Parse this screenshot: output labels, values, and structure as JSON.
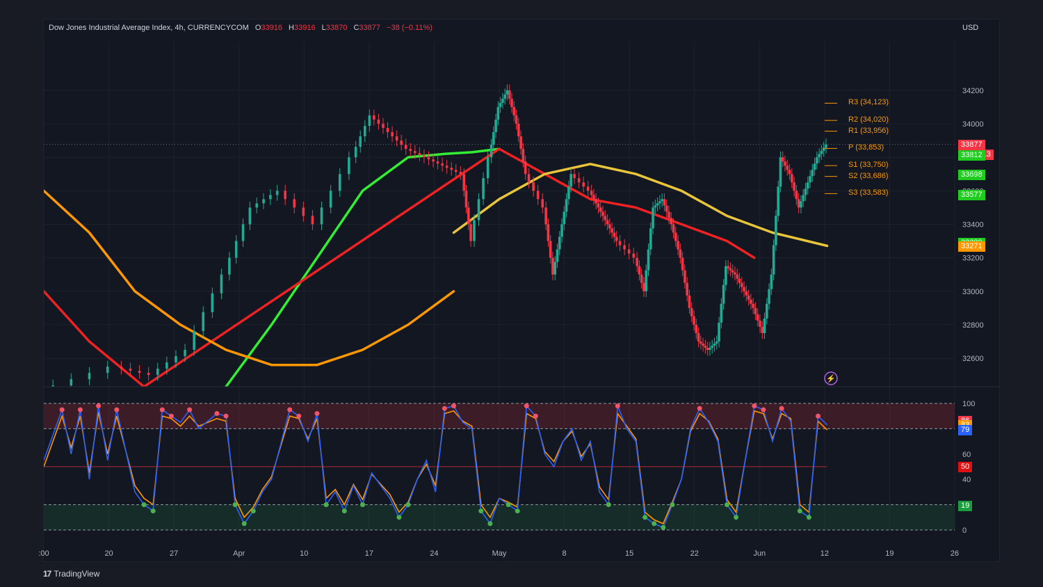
{
  "header": {
    "symbol": "Dow Jones Industrial Average Index, 4h, CURRENCYCOM",
    "o_label": "O",
    "o": "33916",
    "h_label": "H",
    "h": "33916",
    "l_label": "L",
    "l": "33870",
    "c_label": "C",
    "c": "33877",
    "change": "−38 (−0.11%)",
    "currency": "USD"
  },
  "brand": {
    "logo": "17",
    "name": "TradingView"
  },
  "colors": {
    "up": "#22ab94",
    "down": "#f23645",
    "bright_green": "#33ee33",
    "red_ma": "#ee2222",
    "orange": "#ff9800",
    "yellow": "#e8c53a",
    "stoch_k": "#2962ff",
    "stoch_d": "#ff9800"
  },
  "chart_data": {
    "type": "line",
    "title": "Dow Jones Industrial Average Index, 4h, CURRENCYCOM",
    "ylabel": "USD",
    "price_axis": {
      "ticks": [
        "34200",
        "34000",
        "33800",
        "33600",
        "33400",
        "33200",
        "33000",
        "32800",
        "32600"
      ],
      "ylim": [
        32430,
        34490
      ]
    },
    "time_axis": {
      "ticks": [
        ":00",
        "20",
        "27",
        "Apr",
        "10",
        "17",
        "24",
        "May",
        "8",
        "15",
        "22",
        "Jun",
        "12",
        "19",
        "26"
      ]
    },
    "price_path": [
      [
        0,
        32400
      ],
      [
        0.08,
        32550
      ],
      [
        0.12,
        32500
      ],
      [
        0.16,
        32650
      ],
      [
        0.2,
        33100
      ],
      [
        0.23,
        33500
      ],
      [
        0.26,
        33600
      ],
      [
        0.3,
        33400
      ],
      [
        0.34,
        33800
      ],
      [
        0.36,
        34050
      ],
      [
        0.38,
        33950
      ],
      [
        0.4,
        33850
      ],
      [
        0.42,
        33800
      ],
      [
        0.44,
        33750
      ],
      [
        0.46,
        33700
      ],
      [
        0.47,
        33300
      ],
      [
        0.49,
        33800
      ],
      [
        0.5,
        34100
      ],
      [
        0.51,
        34200
      ],
      [
        0.52,
        34000
      ],
      [
        0.53,
        33700
      ],
      [
        0.55,
        33500
      ],
      [
        0.56,
        33100
      ],
      [
        0.57,
        33400
      ],
      [
        0.58,
        33700
      ],
      [
        0.6,
        33600
      ],
      [
        0.61,
        33500
      ],
      [
        0.62,
        33400
      ],
      [
        0.63,
        33300
      ],
      [
        0.65,
        33200
      ],
      [
        0.66,
        33000
      ],
      [
        0.67,
        33500
      ],
      [
        0.68,
        33550
      ],
      [
        0.69,
        33400
      ],
      [
        0.7,
        33200
      ],
      [
        0.71,
        32900
      ],
      [
        0.72,
        32700
      ],
      [
        0.73,
        32650
      ],
      [
        0.74,
        32700
      ],
      [
        0.75,
        33150
      ],
      [
        0.76,
        33100
      ],
      [
        0.77,
        33000
      ],
      [
        0.78,
        32900
      ],
      [
        0.79,
        32750
      ],
      [
        0.8,
        33100
      ],
      [
        0.81,
        33800
      ],
      [
        0.82,
        33700
      ],
      [
        0.83,
        33500
      ],
      [
        0.84,
        33650
      ],
      [
        0.85,
        33800
      ],
      [
        0.86,
        33877
      ]
    ],
    "moving_averages": [
      {
        "color": "bright_green",
        "points": [
          [
            0.2,
            32430
          ],
          [
            0.25,
            32800
          ],
          [
            0.3,
            33200
          ],
          [
            0.35,
            33600
          ],
          [
            0.4,
            33800
          ],
          [
            0.44,
            33820
          ],
          [
            0.47,
            33830
          ],
          [
            0.5,
            33850
          ]
        ]
      },
      {
        "color": "red_ma",
        "points": [
          [
            0,
            33000
          ],
          [
            0.05,
            32700
          ],
          [
            0.11,
            32430
          ],
          [
            0.5,
            33850
          ],
          [
            0.55,
            33700
          ],
          [
            0.6,
            33550
          ],
          [
            0.65,
            33500
          ],
          [
            0.7,
            33400
          ],
          [
            0.75,
            33300
          ],
          [
            0.78,
            33200
          ]
        ]
      },
      {
        "color": "yellow",
        "points": [
          [
            0.45,
            33350
          ],
          [
            0.5,
            33550
          ],
          [
            0.55,
            33700
          ],
          [
            0.6,
            33760
          ],
          [
            0.65,
            33700
          ],
          [
            0.7,
            33600
          ],
          [
            0.75,
            33450
          ],
          [
            0.8,
            33350
          ],
          [
            0.86,
            33271
          ]
        ]
      },
      {
        "color": "orange",
        "points": [
          [
            0,
            33600
          ],
          [
            0.05,
            33350
          ],
          [
            0.1,
            33000
          ],
          [
            0.15,
            32800
          ],
          [
            0.2,
            32650
          ],
          [
            0.25,
            32560
          ],
          [
            0.3,
            32560
          ],
          [
            0.35,
            32650
          ],
          [
            0.4,
            32800
          ],
          [
            0.45,
            33000
          ]
        ]
      }
    ],
    "pivots": [
      {
        "label": "R3 (34,123)",
        "value": 34123
      },
      {
        "label": "R2 (34,020)",
        "value": 34020
      },
      {
        "label": "R1 (33,956)",
        "value": 33956
      },
      {
        "label": "P (33,853)",
        "value": 33853
      },
      {
        "label": "S1 (33,750)",
        "value": 33750
      },
      {
        "label": "S2 (33,686)",
        "value": 33686
      },
      {
        "label": "S3 (33,583)",
        "value": 33583
      }
    ],
    "price_tags": [
      {
        "value": 33877,
        "text": "33877",
        "sub": "03:33:13",
        "color": "#f23645"
      },
      {
        "value": 33812,
        "text": "33812",
        "color": "#1fcc1f"
      },
      {
        "value": 33698,
        "text": "33698",
        "color": "#1fcc1f"
      },
      {
        "value": 33577,
        "text": "33577",
        "color": "#1fcc1f"
      },
      {
        "value": 33289,
        "text": "33289",
        "color": "#1fcc1f"
      },
      {
        "value": 33271,
        "text": "33271",
        "color": "#ff9800"
      }
    ],
    "stochastic": {
      "ticks": [
        "100",
        "60",
        "40",
        "0"
      ],
      "ylim": [
        0,
        100
      ],
      "overbought": 80,
      "oversold": 20,
      "mid": 50,
      "tags": [
        {
          "value": 86,
          "text": "86",
          "color": "#f23645"
        },
        {
          "value": 83,
          "text": "83",
          "color": "#ff9800"
        },
        {
          "value": 79,
          "text": "79",
          "color": "#2962ff"
        },
        {
          "value": 50,
          "text": "50",
          "color": "#dd1111"
        },
        {
          "value": 19,
          "text": "19",
          "color": "#1c9c3c"
        }
      ],
      "k_path": [
        [
          0,
          55
        ],
        [
          0.02,
          95
        ],
        [
          0.03,
          60
        ],
        [
          0.04,
          95
        ],
        [
          0.05,
          40
        ],
        [
          0.06,
          98
        ],
        [
          0.07,
          55
        ],
        [
          0.08,
          95
        ],
        [
          0.1,
          30
        ],
        [
          0.11,
          20
        ],
        [
          0.12,
          15
        ],
        [
          0.13,
          95
        ],
        [
          0.14,
          90
        ],
        [
          0.15,
          85
        ],
        [
          0.16,
          95
        ],
        [
          0.17,
          80
        ],
        [
          0.19,
          92
        ],
        [
          0.2,
          90
        ],
        [
          0.21,
          20
        ],
        [
          0.22,
          5
        ],
        [
          0.23,
          15
        ],
        [
          0.24,
          30
        ],
        [
          0.25,
          40
        ],
        [
          0.27,
          95
        ],
        [
          0.28,
          90
        ],
        [
          0.29,
          70
        ],
        [
          0.3,
          92
        ],
        [
          0.31,
          20
        ],
        [
          0.32,
          30
        ],
        [
          0.33,
          15
        ],
        [
          0.34,
          35
        ],
        [
          0.35,
          20
        ],
        [
          0.36,
          45
        ],
        [
          0.37,
          35
        ],
        [
          0.38,
          25
        ],
        [
          0.39,
          10
        ],
        [
          0.4,
          20
        ],
        [
          0.41,
          40
        ],
        [
          0.42,
          55
        ],
        [
          0.43,
          30
        ],
        [
          0.44,
          96
        ],
        [
          0.45,
          98
        ],
        [
          0.46,
          85
        ],
        [
          0.47,
          80
        ],
        [
          0.48,
          15
        ],
        [
          0.49,
          5
        ],
        [
          0.5,
          25
        ],
        [
          0.51,
          20
        ],
        [
          0.52,
          15
        ],
        [
          0.53,
          98
        ],
        [
          0.54,
          90
        ],
        [
          0.55,
          60
        ],
        [
          0.56,
          50
        ],
        [
          0.57,
          70
        ],
        [
          0.58,
          80
        ],
        [
          0.59,
          55
        ],
        [
          0.6,
          70
        ],
        [
          0.61,
          30
        ],
        [
          0.62,
          20
        ],
        [
          0.63,
          98
        ],
        [
          0.64,
          80
        ],
        [
          0.65,
          70
        ],
        [
          0.66,
          10
        ],
        [
          0.67,
          5
        ],
        [
          0.68,
          2
        ],
        [
          0.69,
          20
        ],
        [
          0.7,
          40
        ],
        [
          0.71,
          80
        ],
        [
          0.72,
          96
        ],
        [
          0.73,
          85
        ],
        [
          0.74,
          70
        ],
        [
          0.75,
          20
        ],
        [
          0.76,
          10
        ],
        [
          0.77,
          55
        ],
        [
          0.78,
          98
        ],
        [
          0.79,
          95
        ],
        [
          0.8,
          70
        ],
        [
          0.81,
          96
        ],
        [
          0.82,
          86
        ],
        [
          0.83,
          15
        ],
        [
          0.84,
          10
        ],
        [
          0.85,
          90
        ],
        [
          0.86,
          83
        ]
      ],
      "d_path": [
        [
          0,
          50
        ],
        [
          0.02,
          90
        ],
        [
          0.03,
          65
        ],
        [
          0.04,
          90
        ],
        [
          0.05,
          45
        ],
        [
          0.06,
          93
        ],
        [
          0.07,
          60
        ],
        [
          0.08,
          90
        ],
        [
          0.1,
          35
        ],
        [
          0.11,
          25
        ],
        [
          0.12,
          20
        ],
        [
          0.13,
          90
        ],
        [
          0.14,
          88
        ],
        [
          0.15,
          82
        ],
        [
          0.16,
          90
        ],
        [
          0.17,
          82
        ],
        [
          0.19,
          88
        ],
        [
          0.2,
          86
        ],
        [
          0.21,
          25
        ],
        [
          0.22,
          10
        ],
        [
          0.23,
          18
        ],
        [
          0.24,
          32
        ],
        [
          0.25,
          42
        ],
        [
          0.27,
          90
        ],
        [
          0.28,
          88
        ],
        [
          0.29,
          72
        ],
        [
          0.3,
          88
        ],
        [
          0.31,
          25
        ],
        [
          0.32,
          32
        ],
        [
          0.33,
          20
        ],
        [
          0.34,
          36
        ],
        [
          0.35,
          24
        ],
        [
          0.36,
          44
        ],
        [
          0.37,
          36
        ],
        [
          0.38,
          28
        ],
        [
          0.39,
          14
        ],
        [
          0.4,
          22
        ],
        [
          0.41,
          40
        ],
        [
          0.42,
          52
        ],
        [
          0.43,
          35
        ],
        [
          0.44,
          92
        ],
        [
          0.45,
          94
        ],
        [
          0.46,
          86
        ],
        [
          0.47,
          82
        ],
        [
          0.48,
          20
        ],
        [
          0.49,
          10
        ],
        [
          0.5,
          25
        ],
        [
          0.51,
          22
        ],
        [
          0.52,
          18
        ],
        [
          0.53,
          92
        ],
        [
          0.54,
          88
        ],
        [
          0.55,
          62
        ],
        [
          0.56,
          54
        ],
        [
          0.57,
          70
        ],
        [
          0.58,
          78
        ],
        [
          0.59,
          58
        ],
        [
          0.6,
          68
        ],
        [
          0.61,
          34
        ],
        [
          0.62,
          24
        ],
        [
          0.63,
          92
        ],
        [
          0.64,
          82
        ],
        [
          0.65,
          72
        ],
        [
          0.66,
          14
        ],
        [
          0.67,
          8
        ],
        [
          0.68,
          5
        ],
        [
          0.69,
          22
        ],
        [
          0.7,
          40
        ],
        [
          0.71,
          78
        ],
        [
          0.72,
          92
        ],
        [
          0.73,
          86
        ],
        [
          0.74,
          72
        ],
        [
          0.75,
          24
        ],
        [
          0.76,
          14
        ],
        [
          0.77,
          55
        ],
        [
          0.78,
          94
        ],
        [
          0.79,
          92
        ],
        [
          0.8,
          72
        ],
        [
          0.81,
          92
        ],
        [
          0.82,
          88
        ],
        [
          0.83,
          20
        ],
        [
          0.84,
          14
        ],
        [
          0.85,
          86
        ],
        [
          0.86,
          79
        ]
      ]
    }
  }
}
